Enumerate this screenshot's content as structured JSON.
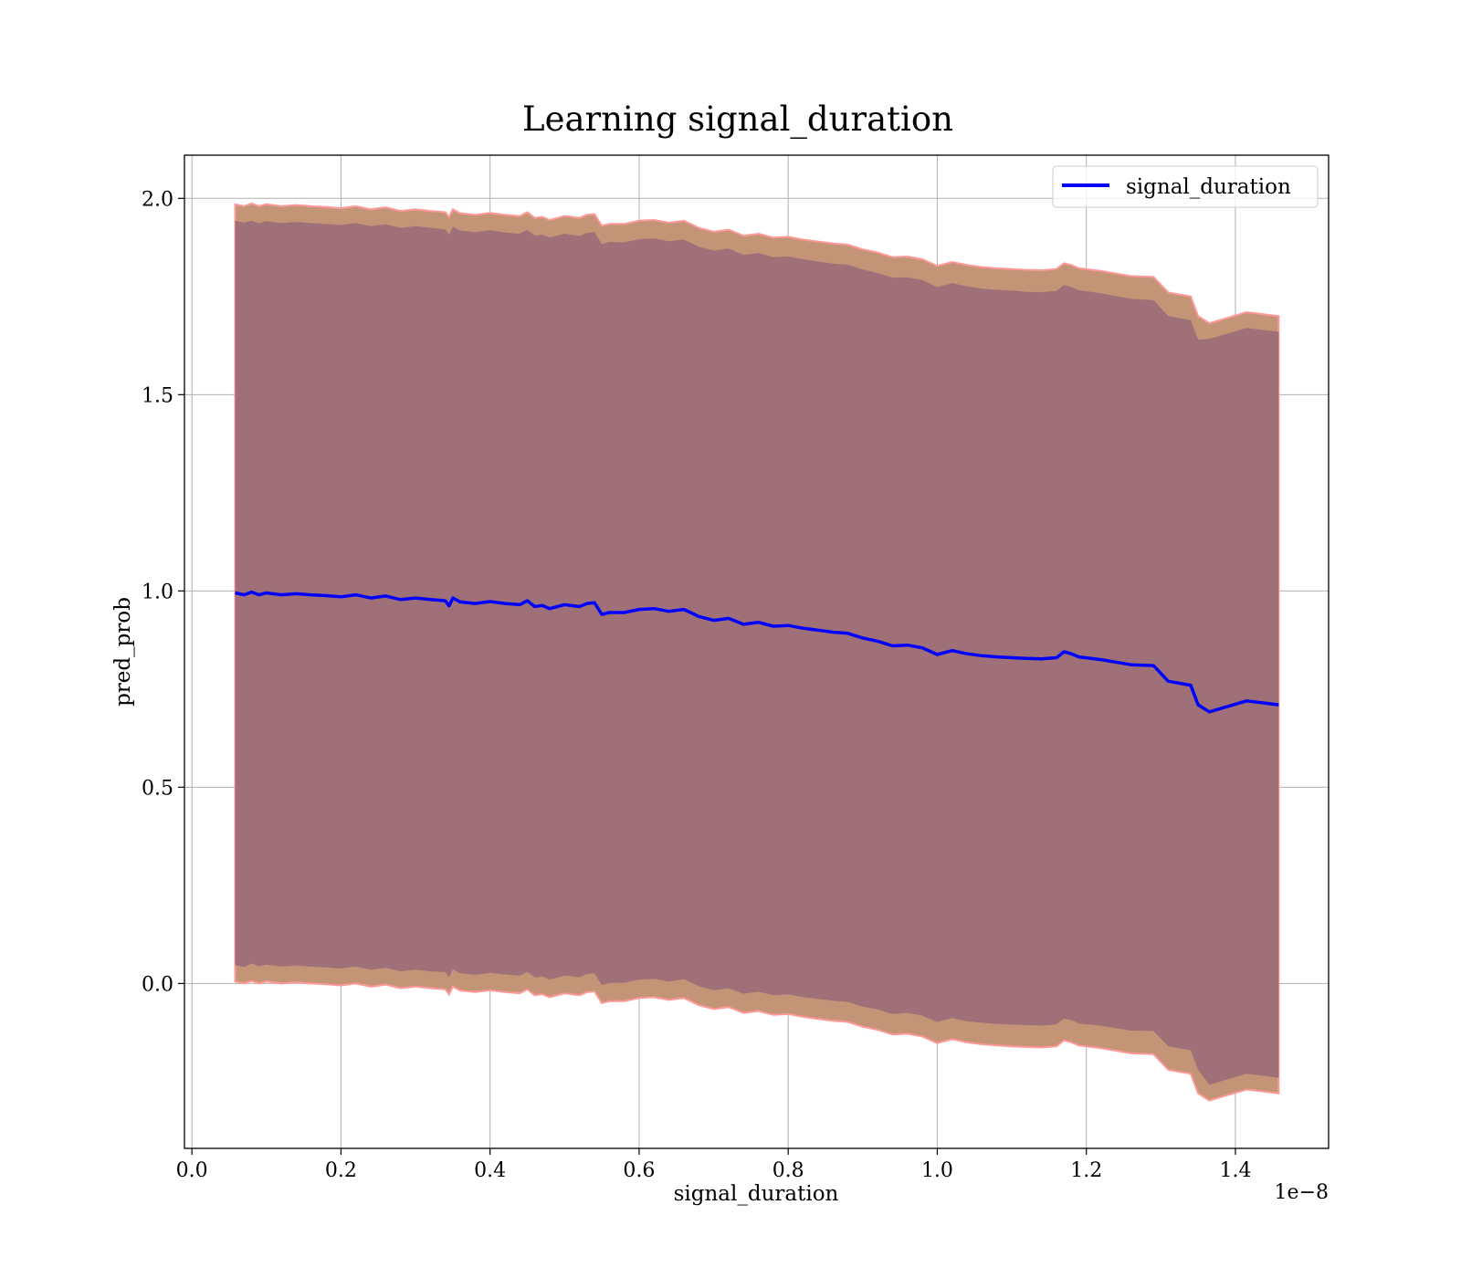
{
  "chart_data": {
    "type": "line",
    "title": "Learning signal_duration",
    "xlabel": "signal_duration",
    "ylabel": "pred_prob",
    "x_offset_label": "1e−8",
    "xlim": [
      -0.01,
      1.525
    ],
    "ylim": [
      -0.42,
      2.11
    ],
    "xticks": [
      0.0,
      0.2,
      0.4,
      0.6,
      0.8,
      1.0,
      1.2,
      1.4
    ],
    "xtick_labels": [
      "0.0",
      "0.2",
      "0.4",
      "0.6",
      "0.8",
      "1.0",
      "1.2",
      "1.4"
    ],
    "yticks": [
      0.0,
      0.5,
      1.0,
      1.5,
      2.0
    ],
    "ytick_labels": [
      "0.0",
      "0.5",
      "1.0",
      "1.5",
      "2.0"
    ],
    "grid": true,
    "legend_position": "upper right",
    "colors": {
      "line": "#0000ff",
      "outer_band": "#c49476",
      "inner_band": "#a07078",
      "band_edge": "#ff9999",
      "grid": "#b0b0b0"
    },
    "series": [
      {
        "name": "signal_duration",
        "x": [
          0.058,
          0.07,
          0.08,
          0.09,
          0.1,
          0.12,
          0.14,
          0.16,
          0.18,
          0.2,
          0.22,
          0.24,
          0.26,
          0.28,
          0.3,
          0.32,
          0.34,
          0.345,
          0.35,
          0.36,
          0.38,
          0.4,
          0.42,
          0.44,
          0.45,
          0.46,
          0.47,
          0.48,
          0.5,
          0.52,
          0.53,
          0.54,
          0.55,
          0.56,
          0.58,
          0.6,
          0.62,
          0.64,
          0.66,
          0.67,
          0.68,
          0.7,
          0.72,
          0.74,
          0.76,
          0.78,
          0.8,
          0.82,
          0.84,
          0.86,
          0.88,
          0.9,
          0.92,
          0.94,
          0.96,
          0.98,
          1.0,
          1.02,
          1.04,
          1.06,
          1.08,
          1.1,
          1.12,
          1.14,
          1.16,
          1.17,
          1.18,
          1.19,
          1.22,
          1.26,
          1.29,
          1.31,
          1.34,
          1.35,
          1.365,
          1.415,
          1.458
        ],
        "y": [
          0.995,
          0.99,
          0.997,
          0.99,
          0.995,
          0.99,
          0.993,
          0.99,
          0.988,
          0.985,
          0.99,
          0.982,
          0.987,
          0.978,
          0.982,
          0.978,
          0.975,
          0.962,
          0.982,
          0.972,
          0.968,
          0.973,
          0.968,
          0.965,
          0.975,
          0.96,
          0.963,
          0.955,
          0.965,
          0.96,
          0.968,
          0.97,
          0.94,
          0.945,
          0.945,
          0.953,
          0.955,
          0.948,
          0.953,
          0.944,
          0.935,
          0.925,
          0.93,
          0.915,
          0.92,
          0.91,
          0.912,
          0.905,
          0.9,
          0.895,
          0.892,
          0.88,
          0.872,
          0.86,
          0.862,
          0.855,
          0.838,
          0.848,
          0.84,
          0.835,
          0.832,
          0.83,
          0.828,
          0.827,
          0.83,
          0.845,
          0.84,
          0.832,
          0.825,
          0.812,
          0.81,
          0.77,
          0.76,
          0.71,
          0.692,
          0.72,
          0.71
        ],
        "sd_inner": [
          0.948,
          0.948,
          0.946,
          0.946,
          0.947,
          0.947,
          0.947,
          0.947,
          0.947,
          0.947,
          0.947,
          0.947,
          0.947,
          0.947,
          0.947,
          0.947,
          0.946,
          0.946,
          0.946,
          0.946,
          0.946,
          0.946,
          0.945,
          0.945,
          0.945,
          0.945,
          0.945,
          0.945,
          0.945,
          0.944,
          0.944,
          0.944,
          0.944,
          0.944,
          0.943,
          0.943,
          0.943,
          0.943,
          0.942,
          0.942,
          0.942,
          0.942,
          0.942,
          0.941,
          0.941,
          0.94,
          0.94,
          0.94,
          0.939,
          0.939,
          0.939,
          0.939,
          0.938,
          0.938,
          0.937,
          0.937,
          0.936,
          0.936,
          0.936,
          0.935,
          0.935,
          0.935,
          0.934,
          0.934,
          0.934,
          0.934,
          0.934,
          0.934,
          0.933,
          0.932,
          0.931,
          0.93,
          0.93,
          0.93,
          0.95,
          0.95,
          0.95
        ],
        "sd_outer": [
          0.99,
          0.99,
          0.99,
          0.99,
          0.99,
          0.99,
          0.99,
          0.99,
          0.99,
          0.99,
          0.99,
          0.99,
          0.99,
          0.99,
          0.99,
          0.99,
          0.99,
          0.99,
          0.99,
          0.99,
          0.99,
          0.99,
          0.99,
          0.99,
          0.99,
          0.99,
          0.99,
          0.99,
          0.99,
          0.99,
          0.99,
          0.99,
          0.99,
          0.99,
          0.99,
          0.99,
          0.99,
          0.99,
          0.99,
          0.99,
          0.99,
          0.99,
          0.99,
          0.99,
          0.99,
          0.99,
          0.99,
          0.99,
          0.99,
          0.99,
          0.99,
          0.99,
          0.99,
          0.99,
          0.99,
          0.99,
          0.99,
          0.99,
          0.99,
          0.99,
          0.99,
          0.99,
          0.99,
          0.99,
          0.99,
          0.99,
          0.99,
          0.99,
          0.99,
          0.99,
          0.99,
          0.99,
          0.99,
          0.99,
          0.99,
          0.99,
          0.99
        ]
      }
    ]
  }
}
